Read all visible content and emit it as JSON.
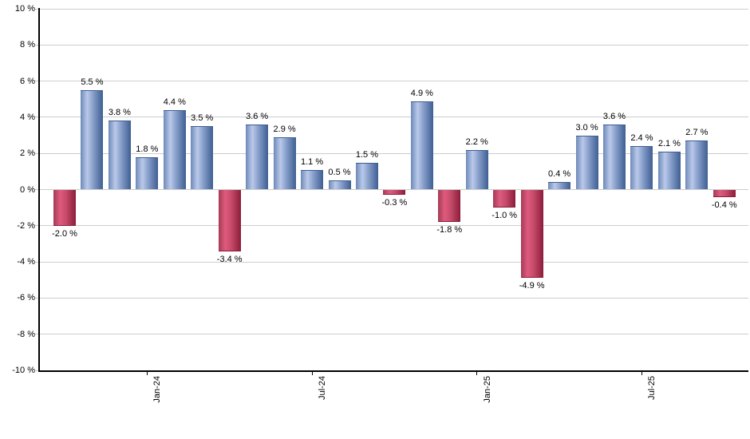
{
  "chart_data": {
    "type": "bar",
    "values": [
      -2.0,
      5.5,
      3.8,
      1.8,
      4.4,
      3.5,
      -3.4,
      3.6,
      2.9,
      1.1,
      0.5,
      1.5,
      -0.3,
      4.9,
      -1.8,
      2.2,
      -1.0,
      -4.9,
      0.4,
      3.0,
      3.6,
      2.4,
      2.1,
      2.7,
      -0.4
    ],
    "bar_labels": [
      "-2.0 %",
      "5.5 %",
      "3.8 %",
      "1.8 %",
      "4.4 %",
      "3.5 %",
      "-3.4 %",
      "3.6 %",
      "2.9 %",
      "1.1 %",
      "0.5 %",
      "1.5 %",
      "-0.3 %",
      "4.9 %",
      "-1.8 %",
      "2.2 %",
      "-1.0 %",
      "-4.9 %",
      "0.4 %",
      "3.0 %",
      "3.6 %",
      "2.4 %",
      "2.1 %",
      "2.7 %",
      "-0.4 %"
    ],
    "x_ticks": [
      {
        "label": "Jan-24",
        "index": 3
      },
      {
        "label": "Jul-24",
        "index": 9
      },
      {
        "label": "Jan-25",
        "index": 15
      },
      {
        "label": "Jul-25",
        "index": 21
      }
    ],
    "y_ticks": [
      "10 %",
      "8 %",
      "6 %",
      "4 %",
      "2 %",
      "0 %",
      "-2 %",
      "-4 %",
      "-6 %",
      "-8 %",
      "-10 %"
    ],
    "ylim": [
      -10,
      10
    ],
    "y_step": 2,
    "grid": true,
    "legend": "none",
    "colors": {
      "positive_edge_left": "#6d89b8",
      "positive_highlight": "#bac9ea",
      "positive_mid": "#849cc8",
      "positive_edge_right": "#3e5e92",
      "negative_edge_left": "#a43b55",
      "negative_highlight": "#e05a7e",
      "negative_mid": "#c34a68",
      "negative_edge_right": "#8c1c3a",
      "gridline": "#cdcdcd",
      "axis": "#000000",
      "label": "#000000"
    }
  }
}
